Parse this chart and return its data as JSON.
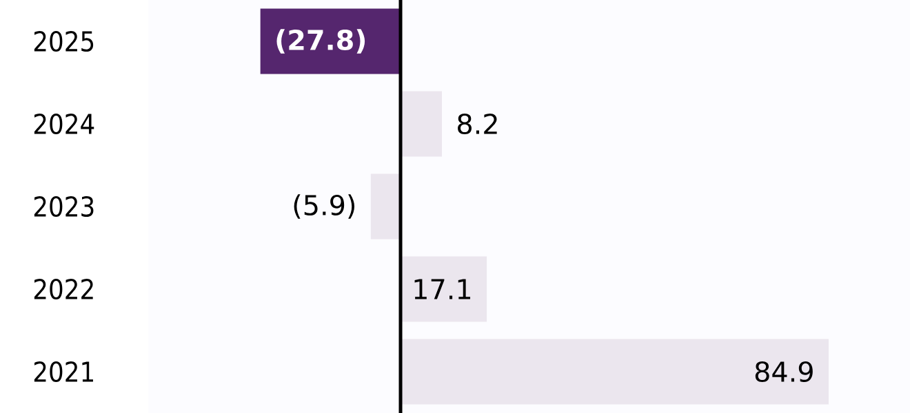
{
  "chart_data": {
    "type": "bar",
    "orientation": "horizontal",
    "categories": [
      "2025",
      "2024",
      "2023",
      "2022",
      "2021"
    ],
    "values": [
      -27.8,
      8.2,
      -5.9,
      17.1,
      84.9
    ],
    "colors": [
      "#55266e",
      "#ebe6ee",
      "#ebe6ee",
      "#ebe6ee",
      "#ebe6ee"
    ],
    "value_labels": [
      "(27.8)",
      "8.2",
      "(5.9)",
      "17.1",
      "84.9"
    ]
  }
}
